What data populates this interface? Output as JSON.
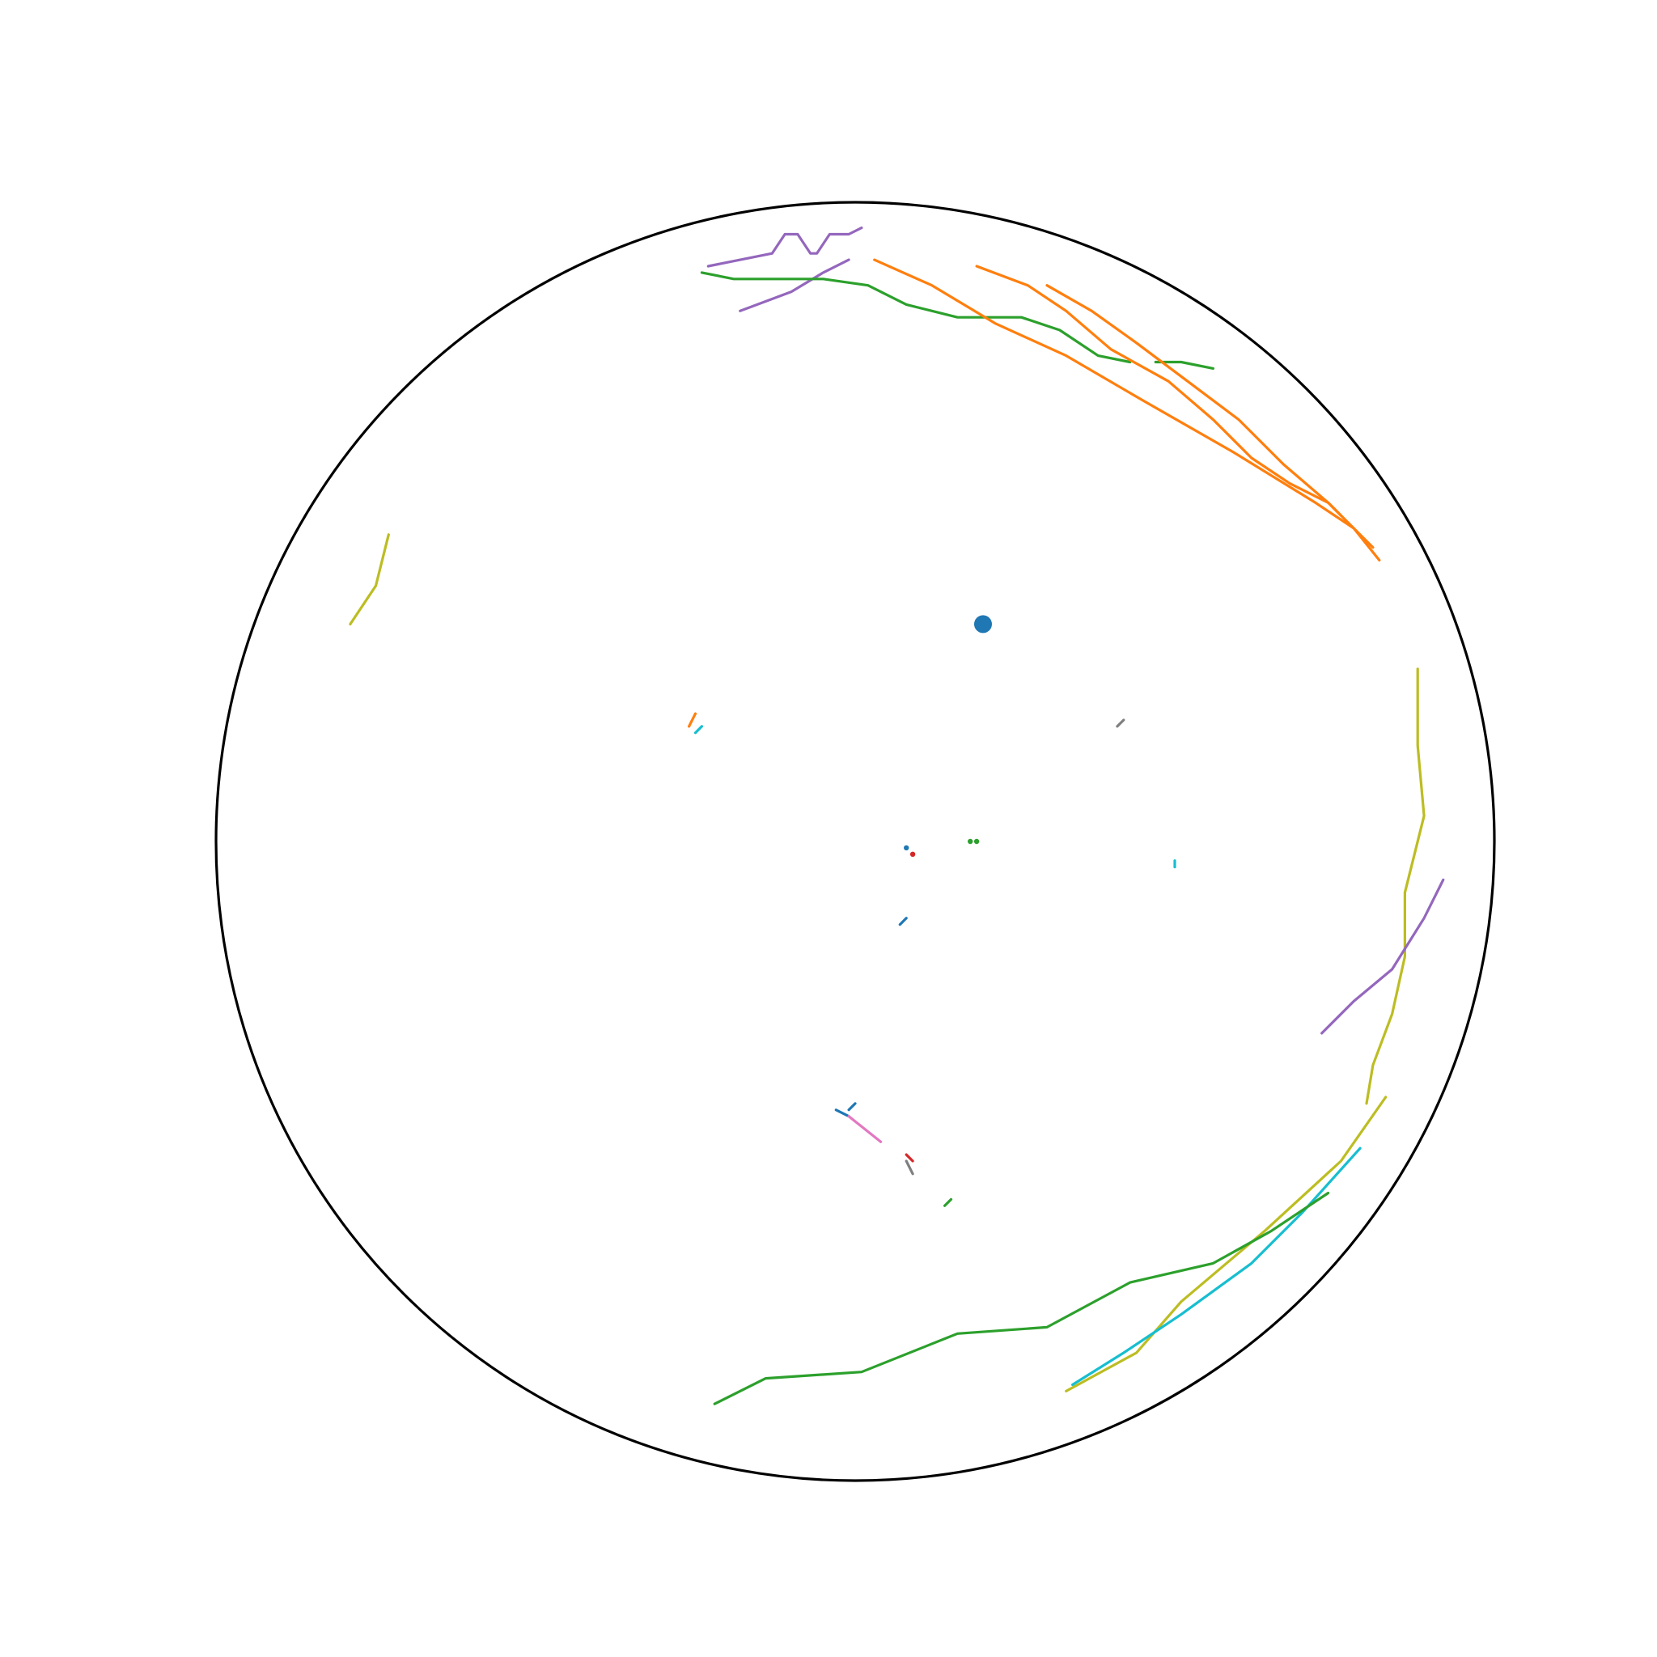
{
  "chart_data": {
    "type": "scatter",
    "title": "",
    "description_note": "",
    "xlim": [
      -1,
      1
    ],
    "ylim": [
      -1,
      1
    ],
    "grid": false,
    "legend": "none",
    "boundary": {
      "type": "unit-circle",
      "color": "#000000"
    },
    "palette": {
      "blue": "#1f77b4",
      "orange": "#ff7f0e",
      "green": "#2ca02c",
      "red": "#d62728",
      "purple": "#9467bd",
      "pink": "#e377c2",
      "gray": "#7f7f7f",
      "olive": "#bcbd22",
      "cyan": "#17becf"
    },
    "series": [
      {
        "color": "#9467bd",
        "points": [
          [
            -0.23,
            0.9
          ],
          [
            -0.13,
            0.92
          ],
          [
            -0.11,
            0.95
          ],
          [
            -0.09,
            0.95
          ],
          [
            -0.07,
            0.92
          ],
          [
            -0.06,
            0.92
          ],
          [
            -0.04,
            0.95
          ],
          [
            -0.01,
            0.95
          ],
          [
            0.01,
            0.96
          ]
        ]
      },
      {
        "color": "#9467bd",
        "points": [
          [
            -0.18,
            0.83
          ],
          [
            -0.1,
            0.86
          ],
          [
            -0.05,
            0.89
          ],
          [
            -0.01,
            0.91
          ]
        ]
      },
      {
        "color": "#2ca02c",
        "points": [
          [
            -0.24,
            0.89
          ],
          [
            -0.19,
            0.88
          ],
          [
            -0.13,
            0.88
          ],
          [
            -0.05,
            0.88
          ],
          [
            0.02,
            0.87
          ],
          [
            0.08,
            0.84
          ],
          [
            0.16,
            0.82
          ],
          [
            0.26,
            0.82
          ],
          [
            0.32,
            0.8
          ],
          [
            0.38,
            0.76
          ],
          [
            0.43,
            0.75
          ]
        ]
      },
      {
        "color": "#2ca02c",
        "points": [
          [
            0.47,
            0.75
          ],
          [
            0.51,
            0.75
          ],
          [
            0.56,
            0.74
          ]
        ]
      },
      {
        "color": "#ff7f0e",
        "points": [
          [
            0.03,
            0.91
          ],
          [
            0.12,
            0.87
          ],
          [
            0.22,
            0.81
          ],
          [
            0.33,
            0.76
          ],
          [
            0.45,
            0.69
          ],
          [
            0.59,
            0.61
          ],
          [
            0.72,
            0.53
          ],
          [
            0.78,
            0.49
          ],
          [
            0.82,
            0.44
          ]
        ]
      },
      {
        "color": "#ff7f0e",
        "points": [
          [
            0.19,
            0.9
          ],
          [
            0.27,
            0.87
          ],
          [
            0.33,
            0.83
          ],
          [
            0.4,
            0.77
          ],
          [
            0.49,
            0.72
          ],
          [
            0.56,
            0.66
          ],
          [
            0.62,
            0.6
          ],
          [
            0.68,
            0.56
          ],
          [
            0.74,
            0.53
          ],
          [
            0.76,
            0.51
          ]
        ]
      },
      {
        "color": "#ff7f0e",
        "points": [
          [
            0.3,
            0.87
          ],
          [
            0.37,
            0.83
          ],
          [
            0.44,
            0.78
          ],
          [
            0.52,
            0.72
          ],
          [
            0.6,
            0.66
          ],
          [
            0.67,
            0.59
          ],
          [
            0.74,
            0.53
          ],
          [
            0.81,
            0.46
          ]
        ]
      },
      {
        "color": "#bcbd22",
        "points": [
          [
            -0.73,
            0.48
          ],
          [
            -0.75,
            0.4
          ],
          [
            -0.79,
            0.34
          ]
        ]
      },
      {
        "color": "#bcbd22",
        "points": [
          [
            0.88,
            0.27
          ],
          [
            0.88,
            0.15
          ],
          [
            0.89,
            0.04
          ],
          [
            0.86,
            -0.08
          ],
          [
            0.86,
            -0.18
          ],
          [
            0.84,
            -0.27
          ],
          [
            0.81,
            -0.35
          ],
          [
            0.8,
            -0.41
          ]
        ]
      },
      {
        "color": "#9467bd",
        "points": [
          [
            0.92,
            -0.06
          ],
          [
            0.89,
            -0.12
          ],
          [
            0.84,
            -0.2
          ],
          [
            0.78,
            -0.25
          ],
          [
            0.73,
            -0.3
          ]
        ]
      },
      {
        "color": "#bcbd22",
        "points": [
          [
            0.83,
            -0.4
          ],
          [
            0.76,
            -0.5
          ],
          [
            0.64,
            -0.61
          ],
          [
            0.51,
            -0.72
          ],
          [
            0.44,
            -0.8
          ],
          [
            0.33,
            -0.86
          ]
        ]
      },
      {
        "color": "#17becf",
        "points": [
          [
            0.79,
            -0.48
          ],
          [
            0.7,
            -0.58
          ],
          [
            0.62,
            -0.66
          ],
          [
            0.51,
            -0.74
          ],
          [
            0.42,
            -0.8
          ],
          [
            0.34,
            -0.85
          ]
        ]
      },
      {
        "color": "#2ca02c",
        "points": [
          [
            0.74,
            -0.55
          ],
          [
            0.65,
            -0.61
          ],
          [
            0.56,
            -0.66
          ],
          [
            0.43,
            -0.69
          ],
          [
            0.3,
            -0.76
          ],
          [
            0.16,
            -0.77
          ],
          [
            0.01,
            -0.83
          ],
          [
            -0.14,
            -0.84
          ],
          [
            -0.22,
            -0.88
          ]
        ]
      },
      {
        "color": "#ff7f0e",
        "points": [
          [
            -0.25,
            0.2
          ],
          [
            -0.26,
            0.18
          ]
        ]
      },
      {
        "color": "#17becf",
        "points": [
          [
            -0.24,
            0.18
          ],
          [
            -0.25,
            0.17
          ]
        ]
      },
      {
        "color": "#7f7f7f",
        "points": [
          [
            0.42,
            0.19
          ],
          [
            0.41,
            0.18
          ]
        ]
      },
      {
        "color": "#1f77b4",
        "points": [
          [
            0.08,
            -0.12
          ],
          [
            0.07,
            -0.13
          ]
        ]
      },
      {
        "color": "#17becf",
        "points": [
          [
            0.5,
            -0.03
          ],
          [
            0.5,
            -0.04
          ]
        ]
      },
      {
        "color": "#1f77b4",
        "points": [
          [
            0.0,
            -0.41
          ],
          [
            -0.01,
            -0.42
          ]
        ]
      },
      {
        "color": "#1f77b4",
        "points": [
          [
            -0.01,
            -0.43
          ],
          [
            -0.03,
            -0.42
          ]
        ]
      },
      {
        "color": "#e377c2",
        "points": [
          [
            -0.01,
            -0.43
          ],
          [
            0.04,
            -0.47
          ]
        ]
      },
      {
        "color": "#d62728",
        "points": [
          [
            0.08,
            -0.49
          ],
          [
            0.09,
            -0.5
          ]
        ]
      },
      {
        "color": "#7f7f7f",
        "points": [
          [
            0.08,
            -0.5
          ],
          [
            0.09,
            -0.52
          ]
        ]
      },
      {
        "color": "#2ca02c",
        "points": [
          [
            0.15,
            -0.56
          ],
          [
            0.14,
            -0.57
          ]
        ]
      }
    ],
    "points": [
      {
        "x": 0.2,
        "y": 0.34,
        "color": "#1f77b4",
        "size": "large"
      },
      {
        "x": 0.08,
        "y": -0.01,
        "color": "#1f77b4",
        "size": "small"
      },
      {
        "x": 0.09,
        "y": -0.02,
        "color": "#d62728",
        "size": "small"
      },
      {
        "x": 0.18,
        "y": 0.0,
        "color": "#2ca02c",
        "size": "small"
      },
      {
        "x": 0.19,
        "y": 0.0,
        "color": "#2ca02c",
        "size": "small"
      }
    ]
  }
}
